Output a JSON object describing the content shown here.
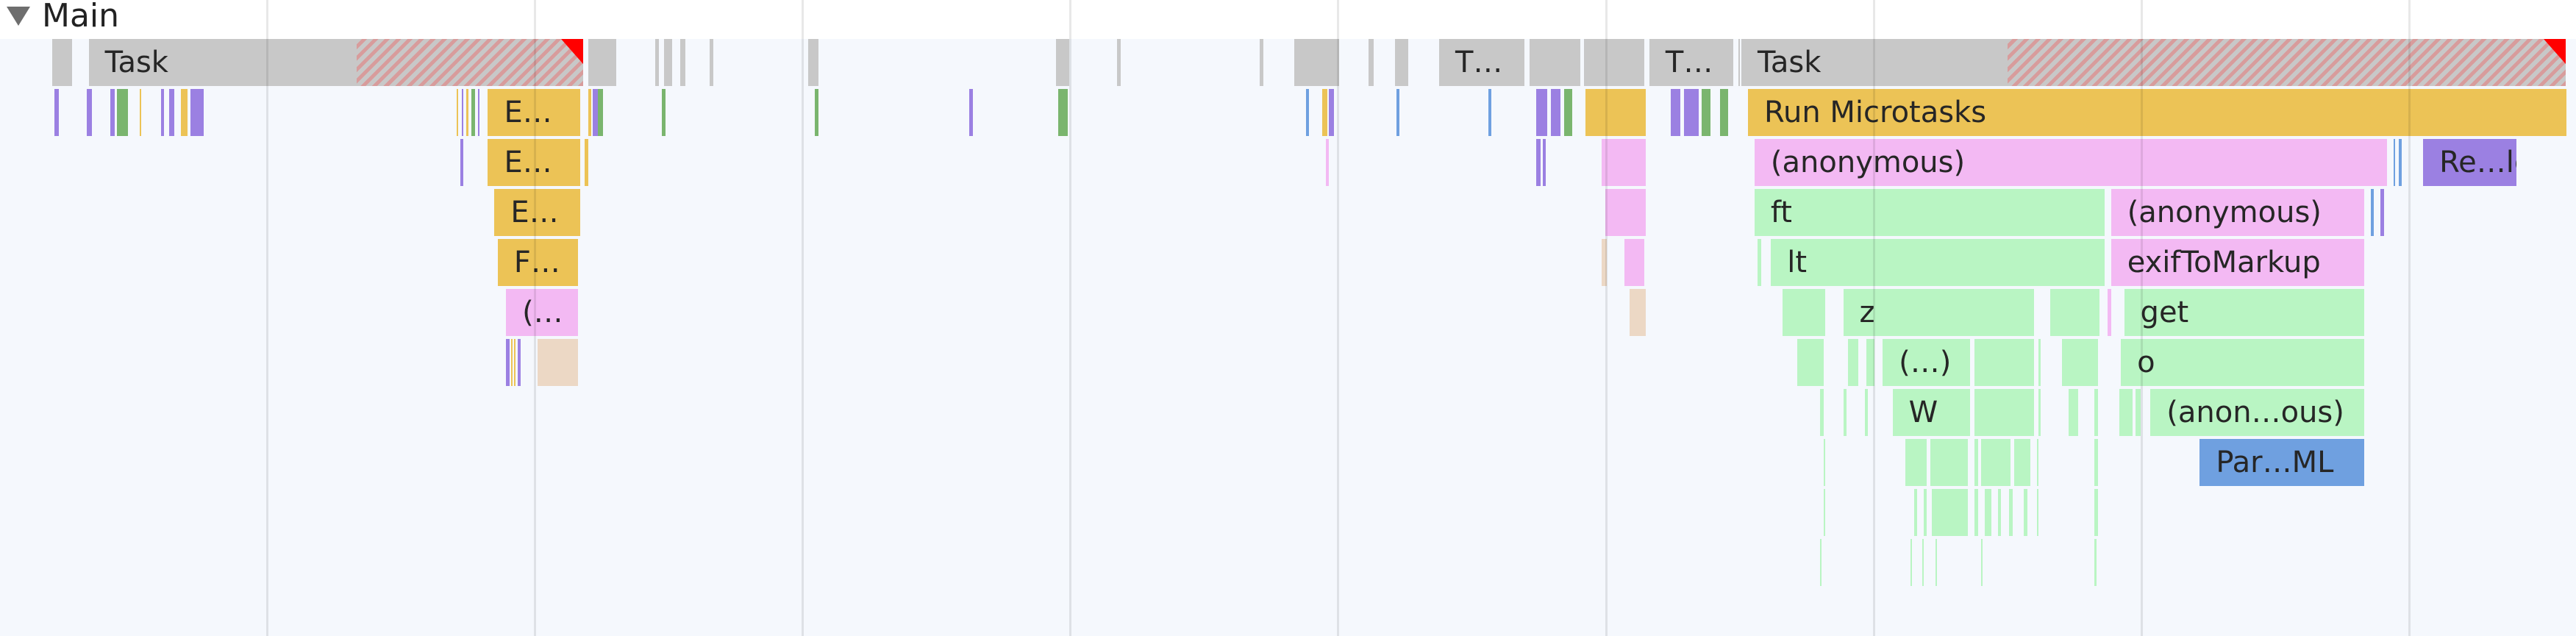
{
  "track": {
    "title": "Main",
    "expanded": true,
    "toggle_icon": "triangle-down-icon"
  },
  "labels": {
    "task1": "Task",
    "task2": "T…",
    "task3": "T…",
    "task4": "Task",
    "e1": "E…",
    "e2": "E…",
    "e3": "E…",
    "f1": "F…",
    "anon_short": "(…",
    "run_microtasks": "Run Microtasks",
    "anonymous1": "(anonymous)",
    "release": "Re…le",
    "ft": "ft",
    "anonymous2": "(anonymous)",
    "lt": "lt",
    "exif": "exifToMarkup",
    "z": "z",
    "get": "get",
    "paren": "(…)",
    "o": "o",
    "W": "W",
    "anon_ous": "(anon…ous)",
    "parse": "Par…ML"
  },
  "colors": {
    "task": "#c8c8c8",
    "scripting": "#ecc356",
    "function_call": "#f3b9f3",
    "js_frame": "#b9f5c3",
    "rendering": "#9b80e2",
    "parse_html": "#6fa0e0",
    "gc": "#ecd8c5",
    "painting": "#7ab56e",
    "long_task_marker": "#ff0000"
  }
}
